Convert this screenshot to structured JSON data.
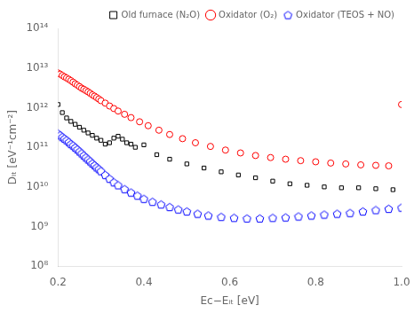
{
  "chart_data": {
    "type": "scatter",
    "x_label": "Eᴄ−Eᵢₜ [eV]",
    "y_label": "Dᵢₜ [eV⁻¹cm⁻²]",
    "log": "y",
    "grid": false,
    "legend": "upper right",
    "xlim": [
      0.2,
      1.0
    ],
    "xticks": [
      0.2,
      0.4,
      0.6,
      0.8,
      {
        "value": 1.0,
        "label": "1.0"
      }
    ],
    "ylim": [
      100000000.0,
      100000000000000.0
    ],
    "yticks": [
      {
        "value": 100000000.0,
        "label": "10⁸"
      },
      {
        "value": 1000000000.0,
        "label": "10⁹"
      },
      {
        "value": 10000000000.0,
        "label": "10¹⁰"
      },
      {
        "value": 100000000000.0,
        "label": "10¹¹"
      },
      {
        "value": 1000000000000.0,
        "label": "10¹²"
      },
      {
        "value": 10000000000000.0,
        "label": "10¹³"
      },
      {
        "value": 100000000000000.0,
        "label": "10¹⁴"
      }
    ],
    "series": [
      {
        "name": "Old furnace (N₂O)",
        "color": "black",
        "marker": "square",
        "x": [
          0.2,
          0.21,
          0.22,
          0.23,
          0.24,
          0.25,
          0.26,
          0.27,
          0.28,
          0.29,
          0.3,
          0.31,
          0.32,
          0.33,
          0.34,
          0.35,
          0.36,
          0.37,
          0.38,
          0.4,
          0.43,
          0.46,
          0.5,
          0.54,
          0.58,
          0.62,
          0.66,
          0.7,
          0.74,
          0.78,
          0.82,
          0.86,
          0.9,
          0.94,
          0.98
        ],
        "values": [
          1200000000000.0,
          750000000000.0,
          550000000000.0,
          450000000000.0,
          380000000000.0,
          320000000000.0,
          270000000000.0,
          230000000000.0,
          200000000000.0,
          170000000000.0,
          150000000000.0,
          120000000000.0,
          130000000000.0,
          170000000000.0,
          190000000000.0,
          160000000000.0,
          130000000000.0,
          120000000000.0,
          100000000000.0,
          115000000000.0,
          65000000000.0,
          50000000000.0,
          38000000000.0,
          30000000000.0,
          24000000000.0,
          20000000000.0,
          17000000000.0,
          14000000000.0,
          12000000000.0,
          11000000000.0,
          10000000000.0,
          9500000000.0,
          9500000000.0,
          9000000000.0,
          8500000000.0
        ]
      },
      {
        "name": "Oxidator (O₂)",
        "color": "red",
        "marker": "circle",
        "x": [
          0.2,
          0.205,
          0.21,
          0.215,
          0.22,
          0.225,
          0.23,
          0.235,
          0.24,
          0.245,
          0.25,
          0.255,
          0.26,
          0.265,
          0.27,
          0.275,
          0.28,
          0.285,
          0.29,
          0.295,
          0.3,
          0.31,
          0.32,
          0.33,
          0.34,
          0.355,
          0.37,
          0.39,
          0.41,
          0.435,
          0.46,
          0.49,
          0.52,
          0.555,
          0.59,
          0.625,
          0.66,
          0.695,
          0.73,
          0.765,
          0.8,
          0.835,
          0.87,
          0.905,
          0.94,
          0.97,
          1.0
        ],
        "values": [
          7500000000000.0,
          7000000000000.0,
          6500000000000.0,
          6000000000000.0,
          5600000000000.0,
          5200000000000.0,
          4800000000000.0,
          4400000000000.0,
          4000000000000.0,
          3700000000000.0,
          3400000000000.0,
          3100000000000.0,
          2900000000000.0,
          2700000000000.0,
          2500000000000.0,
          2300000000000.0,
          2100000000000.0,
          1950000000000.0,
          1800000000000.0,
          1650000000000.0,
          1500000000000.0,
          1300000000000.0,
          1100000000000.0,
          950000000000.0,
          820000000000.0,
          680000000000.0,
          560000000000.0,
          440000000000.0,
          350000000000.0,
          270000000000.0,
          210000000000.0,
          165000000000.0,
          130000000000.0,
          105000000000.0,
          85000000000.0,
          72000000000.0,
          62000000000.0,
          55000000000.0,
          50000000000.0,
          46000000000.0,
          43000000000.0,
          40000000000.0,
          38000000000.0,
          36000000000.0,
          35000000000.0,
          34000000000.0,
          1200000000000.0
        ]
      },
      {
        "name": "Oxidator (TEOS + NO)",
        "color": "blue",
        "marker": "pentagon",
        "x": [
          0.2,
          0.205,
          0.21,
          0.215,
          0.22,
          0.225,
          0.23,
          0.235,
          0.24,
          0.245,
          0.25,
          0.255,
          0.26,
          0.265,
          0.27,
          0.275,
          0.28,
          0.285,
          0.29,
          0.295,
          0.3,
          0.31,
          0.32,
          0.33,
          0.34,
          0.355,
          0.37,
          0.385,
          0.4,
          0.42,
          0.44,
          0.46,
          0.48,
          0.5,
          0.525,
          0.55,
          0.58,
          0.61,
          0.64,
          0.67,
          0.7,
          0.73,
          0.76,
          0.79,
          0.82,
          0.85,
          0.88,
          0.91,
          0.94,
          0.97,
          1.0
        ],
        "values": [
          220000000000.0,
          200000000000.0,
          180000000000.0,
          165000000000.0,
          150000000000.0,
          135000000000.0,
          120000000000.0,
          110000000000.0,
          98000000000.0,
          88000000000.0,
          78000000000.0,
          70000000000.0,
          62000000000.0,
          55000000000.0,
          49000000000.0,
          44000000000.0,
          39000000000.0,
          35000000000.0,
          31000000000.0,
          28000000000.0,
          25000000000.0,
          20000000000.0,
          16000000000.0,
          13000000000.0,
          11000000000.0,
          8800000000.0,
          7200000000.0,
          6000000000.0,
          5000000000.0,
          4200000000.0,
          3600000000.0,
          3100000000.0,
          2700000000.0,
          2400000000.0,
          2100000000.0,
          1900000000.0,
          1750000000.0,
          1650000000.0,
          1600000000.0,
          1600000000.0,
          1650000000.0,
          1700000000.0,
          1800000000.0,
          1900000000.0,
          2000000000.0,
          2100000000.0,
          2200000000.0,
          2400000000.0,
          2600000000.0,
          2800000000.0,
          3000000000.0
        ]
      }
    ]
  }
}
